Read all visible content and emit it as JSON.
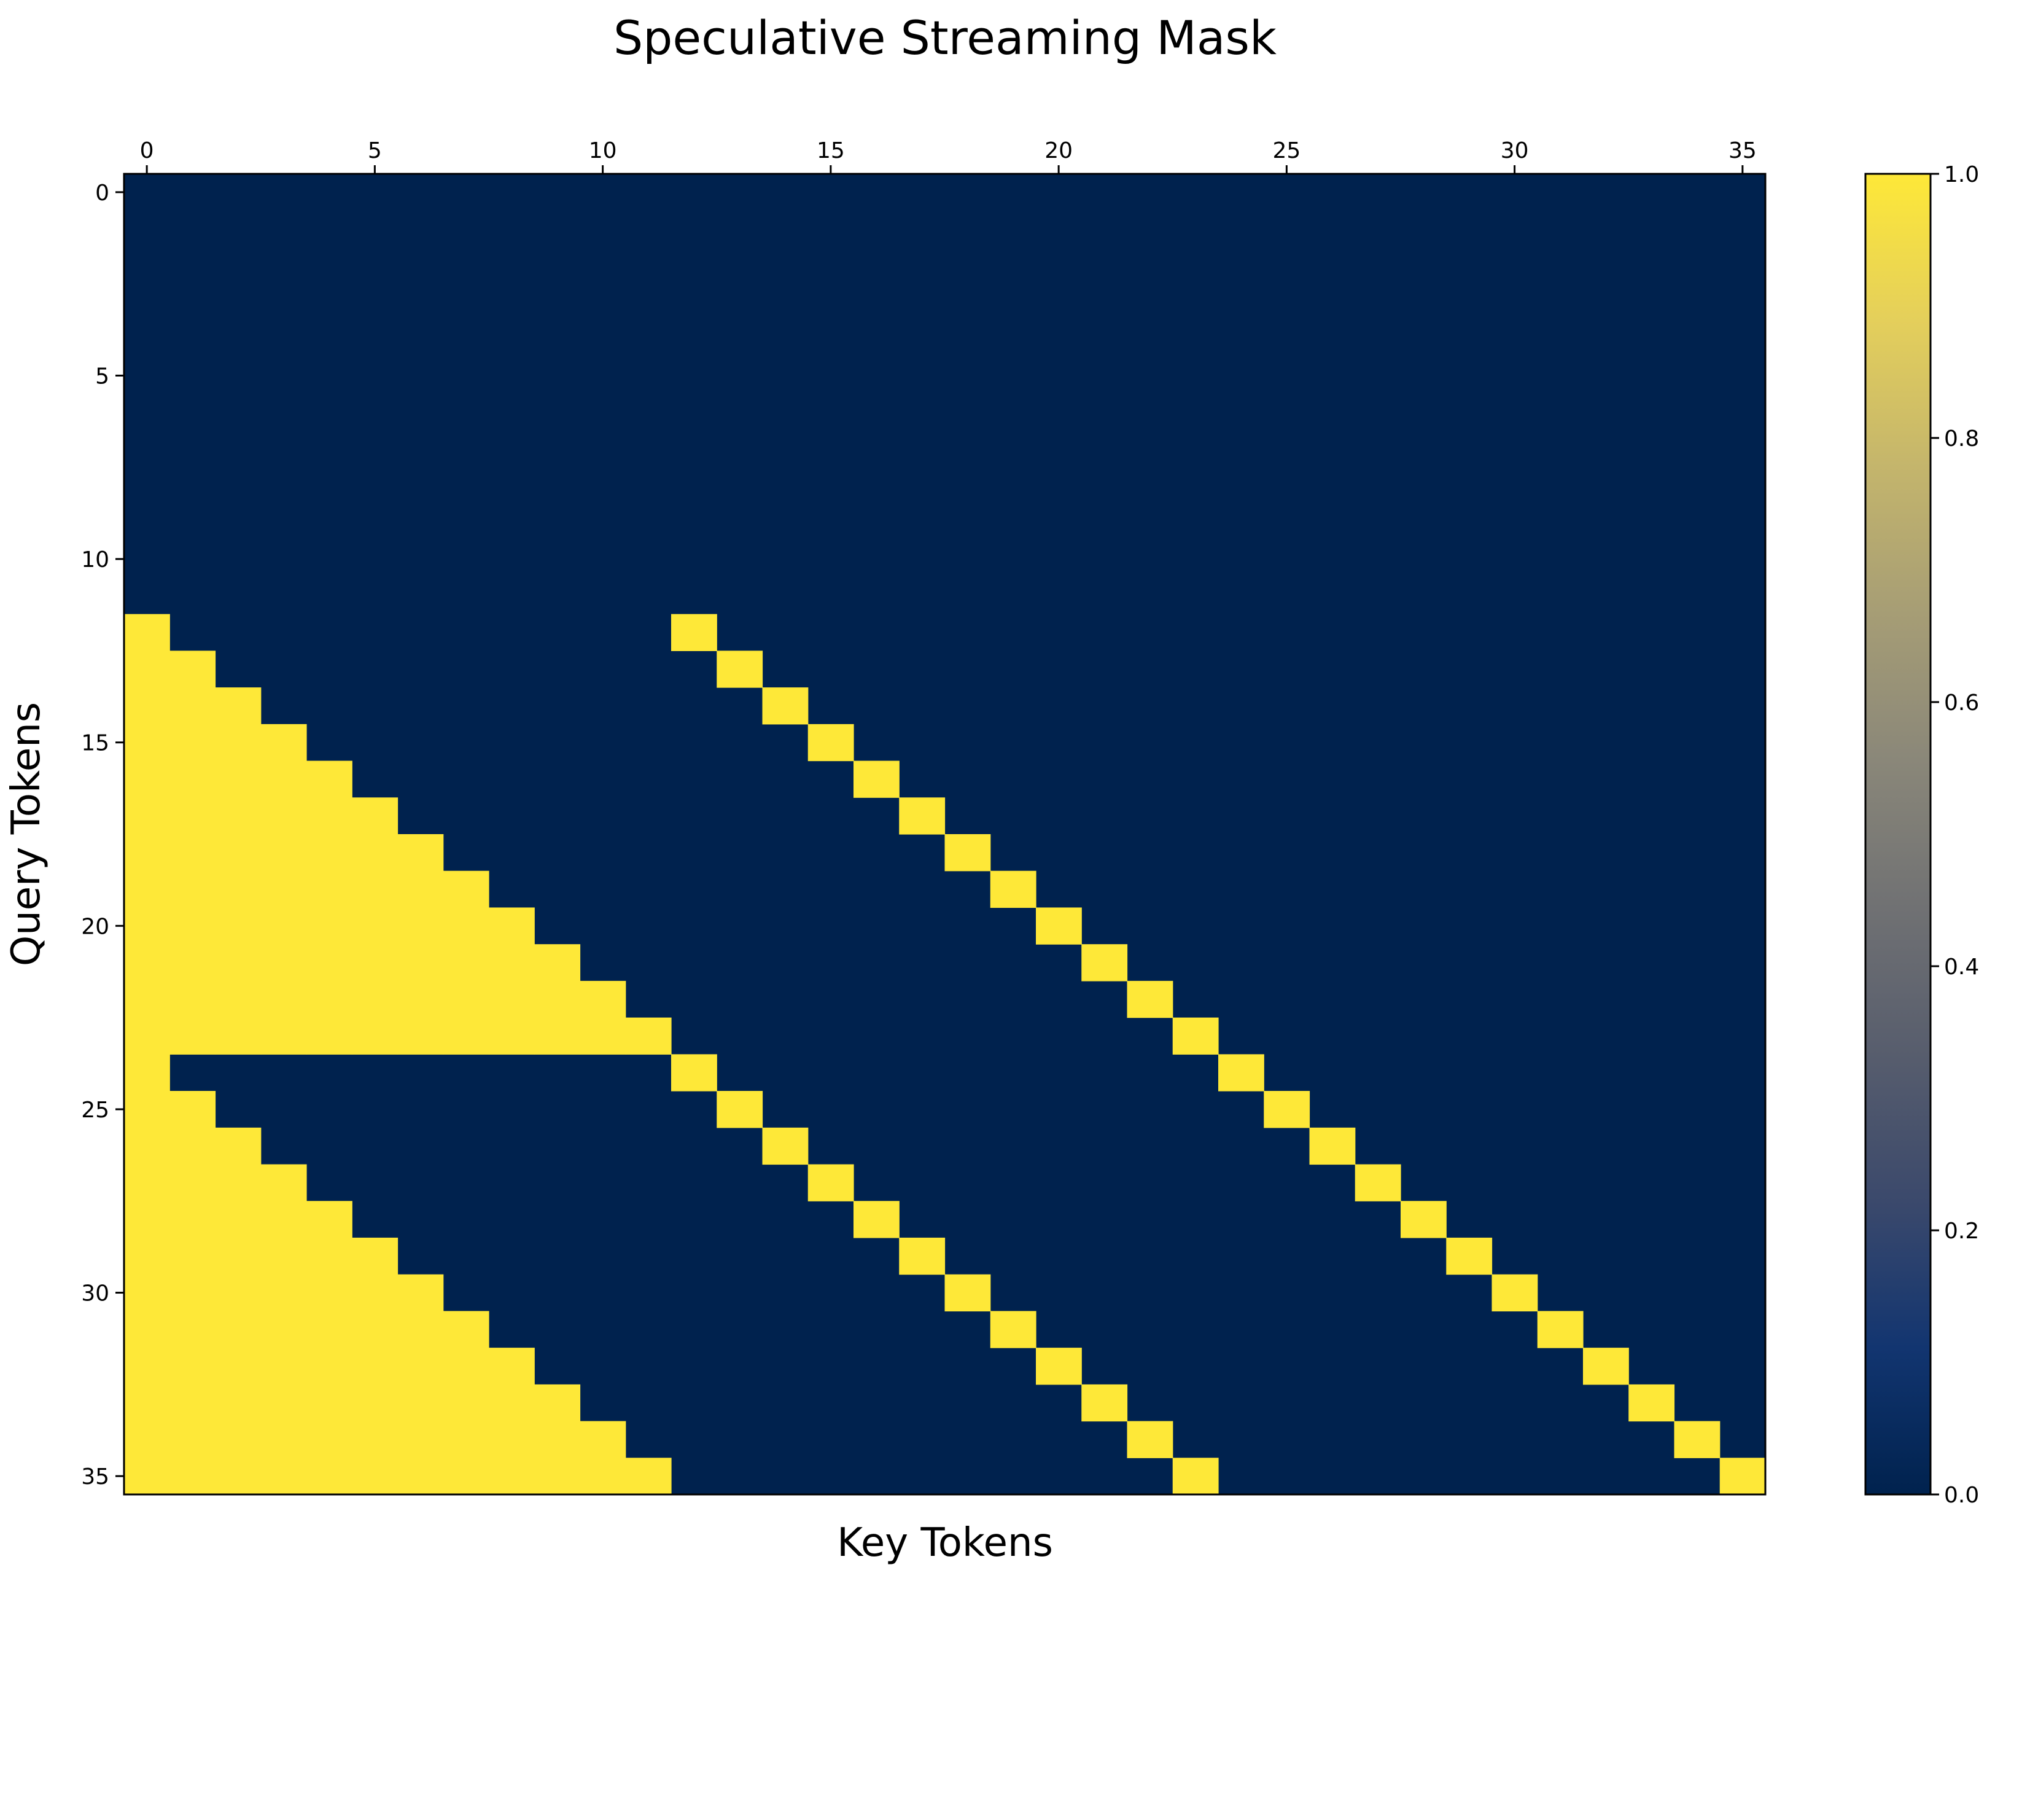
{
  "chart_data": {
    "type": "heatmap",
    "title": "Speculative Streaming Mask",
    "xlabel": "Key Tokens",
    "ylabel": "Query Tokens",
    "rows": 36,
    "cols": 36,
    "x_ticks": [
      0,
      5,
      10,
      15,
      20,
      25,
      30,
      35
    ],
    "x_tick_labels": [
      "0",
      "5",
      "10",
      "15",
      "20",
      "25",
      "30",
      "35"
    ],
    "x_axis_position": "top",
    "y_ticks": [
      0,
      5,
      10,
      15,
      20,
      25,
      30,
      35
    ],
    "y_tick_labels": [
      "0",
      "5",
      "10",
      "15",
      "20",
      "25",
      "30",
      "35"
    ],
    "value_range": [
      0.0,
      1.0
    ],
    "colormap": "cividis",
    "colorbar_ticks": [
      0.0,
      0.2,
      0.4,
      0.6,
      0.8,
      1.0
    ],
    "colorbar_tick_labels": [
      "0.0",
      "0.2",
      "0.4",
      "0.6",
      "0.8",
      "1.0"
    ],
    "colorbar_position": "right",
    "colors": {
      "low": "#00224e",
      "high": "#fee838",
      "stops": [
        "#00224e",
        "#123570",
        "#3b496c",
        "#575d6d",
        "#707173",
        "#8a8779",
        "#a69d75",
        "#c4b56c",
        "#e4cf5b",
        "#fee838"
      ]
    },
    "cells_value_1": [
      [
        12,
        0
      ],
      [
        12,
        12
      ],
      [
        13,
        0
      ],
      [
        13,
        1
      ],
      [
        13,
        13
      ],
      [
        14,
        0
      ],
      [
        14,
        1
      ],
      [
        14,
        2
      ],
      [
        14,
        14
      ],
      [
        15,
        0
      ],
      [
        15,
        1
      ],
      [
        15,
        2
      ],
      [
        15,
        3
      ],
      [
        15,
        15
      ],
      [
        16,
        0
      ],
      [
        16,
        1
      ],
      [
        16,
        2
      ],
      [
        16,
        3
      ],
      [
        16,
        4
      ],
      [
        16,
        16
      ],
      [
        17,
        0
      ],
      [
        17,
        1
      ],
      [
        17,
        2
      ],
      [
        17,
        3
      ],
      [
        17,
        4
      ],
      [
        17,
        5
      ],
      [
        17,
        17
      ],
      [
        18,
        0
      ],
      [
        18,
        1
      ],
      [
        18,
        2
      ],
      [
        18,
        3
      ],
      [
        18,
        4
      ],
      [
        18,
        5
      ],
      [
        18,
        6
      ],
      [
        18,
        18
      ],
      [
        19,
        0
      ],
      [
        19,
        1
      ],
      [
        19,
        2
      ],
      [
        19,
        3
      ],
      [
        19,
        4
      ],
      [
        19,
        5
      ],
      [
        19,
        6
      ],
      [
        19,
        7
      ],
      [
        19,
        19
      ],
      [
        20,
        0
      ],
      [
        20,
        1
      ],
      [
        20,
        2
      ],
      [
        20,
        3
      ],
      [
        20,
        4
      ],
      [
        20,
        5
      ],
      [
        20,
        6
      ],
      [
        20,
        7
      ],
      [
        20,
        8
      ],
      [
        20,
        20
      ],
      [
        21,
        0
      ],
      [
        21,
        1
      ],
      [
        21,
        2
      ],
      [
        21,
        3
      ],
      [
        21,
        4
      ],
      [
        21,
        5
      ],
      [
        21,
        6
      ],
      [
        21,
        7
      ],
      [
        21,
        8
      ],
      [
        21,
        9
      ],
      [
        21,
        21
      ],
      [
        22,
        0
      ],
      [
        22,
        1
      ],
      [
        22,
        2
      ],
      [
        22,
        3
      ],
      [
        22,
        4
      ],
      [
        22,
        5
      ],
      [
        22,
        6
      ],
      [
        22,
        7
      ],
      [
        22,
        8
      ],
      [
        22,
        9
      ],
      [
        22,
        10
      ],
      [
        22,
        22
      ],
      [
        23,
        0
      ],
      [
        23,
        1
      ],
      [
        23,
        2
      ],
      [
        23,
        3
      ],
      [
        23,
        4
      ],
      [
        23,
        5
      ],
      [
        23,
        6
      ],
      [
        23,
        7
      ],
      [
        23,
        8
      ],
      [
        23,
        9
      ],
      [
        23,
        10
      ],
      [
        23,
        11
      ],
      [
        23,
        23
      ],
      [
        24,
        0
      ],
      [
        24,
        12
      ],
      [
        24,
        24
      ],
      [
        25,
        0
      ],
      [
        25,
        1
      ],
      [
        25,
        13
      ],
      [
        25,
        25
      ],
      [
        26,
        0
      ],
      [
        26,
        1
      ],
      [
        26,
        2
      ],
      [
        26,
        14
      ],
      [
        26,
        26
      ],
      [
        27,
        0
      ],
      [
        27,
        1
      ],
      [
        27,
        2
      ],
      [
        27,
        3
      ],
      [
        27,
        15
      ],
      [
        27,
        27
      ],
      [
        28,
        0
      ],
      [
        28,
        1
      ],
      [
        28,
        2
      ],
      [
        28,
        3
      ],
      [
        28,
        4
      ],
      [
        28,
        16
      ],
      [
        28,
        28
      ],
      [
        29,
        0
      ],
      [
        29,
        1
      ],
      [
        29,
        2
      ],
      [
        29,
        3
      ],
      [
        29,
        4
      ],
      [
        29,
        5
      ],
      [
        29,
        17
      ],
      [
        29,
        29
      ],
      [
        30,
        0
      ],
      [
        30,
        1
      ],
      [
        30,
        2
      ],
      [
        30,
        3
      ],
      [
        30,
        4
      ],
      [
        30,
        5
      ],
      [
        30,
        6
      ],
      [
        30,
        18
      ],
      [
        30,
        30
      ],
      [
        31,
        0
      ],
      [
        31,
        1
      ],
      [
        31,
        2
      ],
      [
        31,
        3
      ],
      [
        31,
        4
      ],
      [
        31,
        5
      ],
      [
        31,
        6
      ],
      [
        31,
        7
      ],
      [
        31,
        19
      ],
      [
        31,
        31
      ],
      [
        32,
        0
      ],
      [
        32,
        1
      ],
      [
        32,
        2
      ],
      [
        32,
        3
      ],
      [
        32,
        4
      ],
      [
        32,
        5
      ],
      [
        32,
        6
      ],
      [
        32,
        7
      ],
      [
        32,
        8
      ],
      [
        32,
        20
      ],
      [
        32,
        32
      ],
      [
        33,
        0
      ],
      [
        33,
        1
      ],
      [
        33,
        2
      ],
      [
        33,
        3
      ],
      [
        33,
        4
      ],
      [
        33,
        5
      ],
      [
        33,
        6
      ],
      [
        33,
        7
      ],
      [
        33,
        8
      ],
      [
        33,
        9
      ],
      [
        33,
        21
      ],
      [
        33,
        33
      ],
      [
        34,
        0
      ],
      [
        34,
        1
      ],
      [
        34,
        2
      ],
      [
        34,
        3
      ],
      [
        34,
        4
      ],
      [
        34,
        5
      ],
      [
        34,
        6
      ],
      [
        34,
        7
      ],
      [
        34,
        8
      ],
      [
        34,
        9
      ],
      [
        34,
        10
      ],
      [
        34,
        22
      ],
      [
        34,
        34
      ],
      [
        35,
        0
      ],
      [
        35,
        1
      ],
      [
        35,
        2
      ],
      [
        35,
        3
      ],
      [
        35,
        4
      ],
      [
        35,
        5
      ],
      [
        35,
        6
      ],
      [
        35,
        7
      ],
      [
        35,
        8
      ],
      [
        35,
        9
      ],
      [
        35,
        10
      ],
      [
        35,
        11
      ],
      [
        35,
        23
      ],
      [
        35,
        35
      ]
    ]
  }
}
